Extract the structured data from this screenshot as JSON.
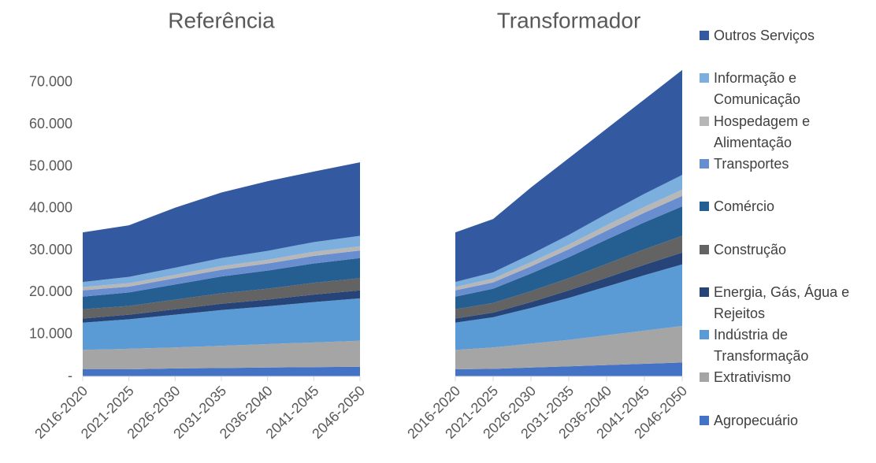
{
  "chart_data": [
    {
      "type": "stacked_area",
      "title": "Referência",
      "categories": [
        "2016-2020",
        "2021-2025",
        "2026-2030",
        "2031-2035",
        "2036-2040",
        "2041-2045",
        "2046-2050"
      ],
      "ylim": [
        0,
        80000
      ],
      "yticks": [
        {
          "value": 0,
          "label": "-"
        },
        {
          "value": 10000,
          "label": "10.000"
        },
        {
          "value": 20000,
          "label": "20.000"
        },
        {
          "value": 30000,
          "label": "30.000"
        },
        {
          "value": 40000,
          "label": "40.000"
        },
        {
          "value": 50000,
          "label": "50.000"
        },
        {
          "value": 60000,
          "label": "60.000"
        },
        {
          "value": 70000,
          "label": "70.000"
        }
      ],
      "series": [
        {
          "name": "Agropecuário",
          "color": "#4472c4",
          "values": [
            1700,
            1700,
            1900,
            2000,
            2100,
            2200,
            2300
          ]
        },
        {
          "name": "Extrativismo",
          "color": "#a5a5a5",
          "values": [
            4600,
            4900,
            5000,
            5300,
            5600,
            5900,
            6200
          ]
        },
        {
          "name": "Indústria de Transformação",
          "color": "#5b9bd5",
          "values": [
            6500,
            7000,
            7800,
            8500,
            9000,
            9600,
            10100
          ]
        },
        {
          "name": "Energia, Gás, Água e Rejeitos",
          "color": "#264478",
          "values": [
            1000,
            1100,
            1300,
            1500,
            1600,
            1800,
            1900
          ]
        },
        {
          "name": "Construção",
          "color": "#636363",
          "values": [
            2200,
            2100,
            2300,
            2500,
            2600,
            2800,
            2900
          ]
        },
        {
          "name": "Comércio",
          "color": "#255e91",
          "values": [
            3000,
            3200,
            3600,
            4000,
            4300,
            4600,
            4800
          ]
        },
        {
          "name": "Transportes",
          "color": "#698ed0",
          "values": [
            1500,
            1400,
            1500,
            1600,
            1700,
            1800,
            1800
          ]
        },
        {
          "name": "Hospedagem e Alimentação",
          "color": "#b7b7b7",
          "values": [
            800,
            800,
            800,
            900,
            900,
            1000,
            1000
          ]
        },
        {
          "name": "Informação e Comunicação",
          "color": "#7cafdd",
          "values": [
            1200,
            1500,
            1700,
            1900,
            2100,
            2300,
            2500
          ]
        },
        {
          "name": "Outros Serviços",
          "color": "#335aa1",
          "values": [
            11800,
            12300,
            14300,
            15600,
            16600,
            16800,
            17500
          ]
        }
      ]
    },
    {
      "type": "stacked_area",
      "title": "Transformador",
      "categories": [
        "2016-2020",
        "2021-2025",
        "2026-2030",
        "2031-2035",
        "2036-2040",
        "2041-2045",
        "2046-2050"
      ],
      "ylim": [
        0,
        80000
      ],
      "series": [
        {
          "color": "#4472c4",
          "values": [
            1700,
            1800,
            2100,
            2400,
            2700,
            3000,
            3300
          ]
        },
        {
          "color": "#a5a5a5",
          "values": [
            4600,
            5100,
            5700,
            6300,
            7100,
            7900,
            8700
          ]
        },
        {
          "color": "#5b9bd5",
          "values": [
            6500,
            7200,
            8500,
            10000,
            11600,
            13200,
            14700
          ]
        },
        {
          "color": "#264478",
          "values": [
            1000,
            1100,
            1400,
            1800,
            2100,
            2500,
            2800
          ]
        },
        {
          "color": "#636363",
          "values": [
            2200,
            2300,
            2600,
            2900,
            3300,
            3700,
            4000
          ]
        },
        {
          "color": "#255e91",
          "values": [
            3000,
            3400,
            4200,
            5000,
            5800,
            6400,
            7000
          ]
        },
        {
          "color": "#698ed0",
          "values": [
            1500,
            1500,
            1700,
            1900,
            2100,
            2300,
            2500
          ]
        },
        {
          "color": "#b7b7b7",
          "values": [
            800,
            900,
            1000,
            1100,
            1300,
            1400,
            1500
          ]
        },
        {
          "color": "#7cafdd",
          "values": [
            1200,
            1500,
            1900,
            2300,
            2700,
            3100,
            3500
          ]
        },
        {
          "color": "#335aa1",
          "values": [
            11800,
            12700,
            15900,
            18300,
            20300,
            22500,
            25000
          ]
        }
      ]
    }
  ]
}
